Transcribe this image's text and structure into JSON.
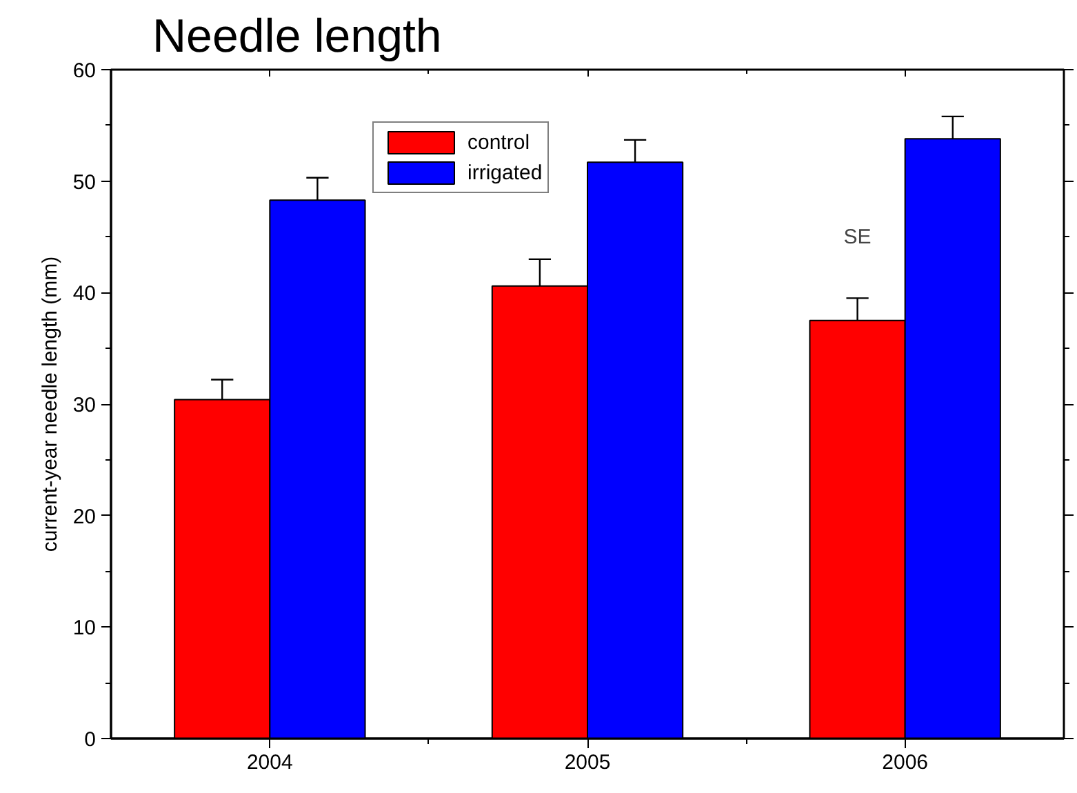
{
  "chart_data": {
    "type": "bar",
    "title": "Needle length",
    "ylabel": "current-year needle length (mm)",
    "categories": [
      "2004",
      "2005",
      "2006"
    ],
    "series": [
      {
        "name": "control",
        "color": "#ff0000",
        "values": [
          30.4,
          40.6,
          37.5
        ],
        "errors": [
          1.8,
          2.4,
          2.0
        ]
      },
      {
        "name": "irrigated",
        "color": "#0000ff",
        "values": [
          48.3,
          51.7,
          53.8
        ],
        "errors": [
          2.0,
          2.0,
          2.0
        ]
      }
    ],
    "ylim": [
      0,
      60
    ],
    "yticks": [
      0,
      10,
      20,
      30,
      40,
      50,
      60
    ],
    "grid": false,
    "legend": "top",
    "annotations": [
      {
        "text": "SE",
        "x": "2006",
        "y": 45
      }
    ]
  }
}
